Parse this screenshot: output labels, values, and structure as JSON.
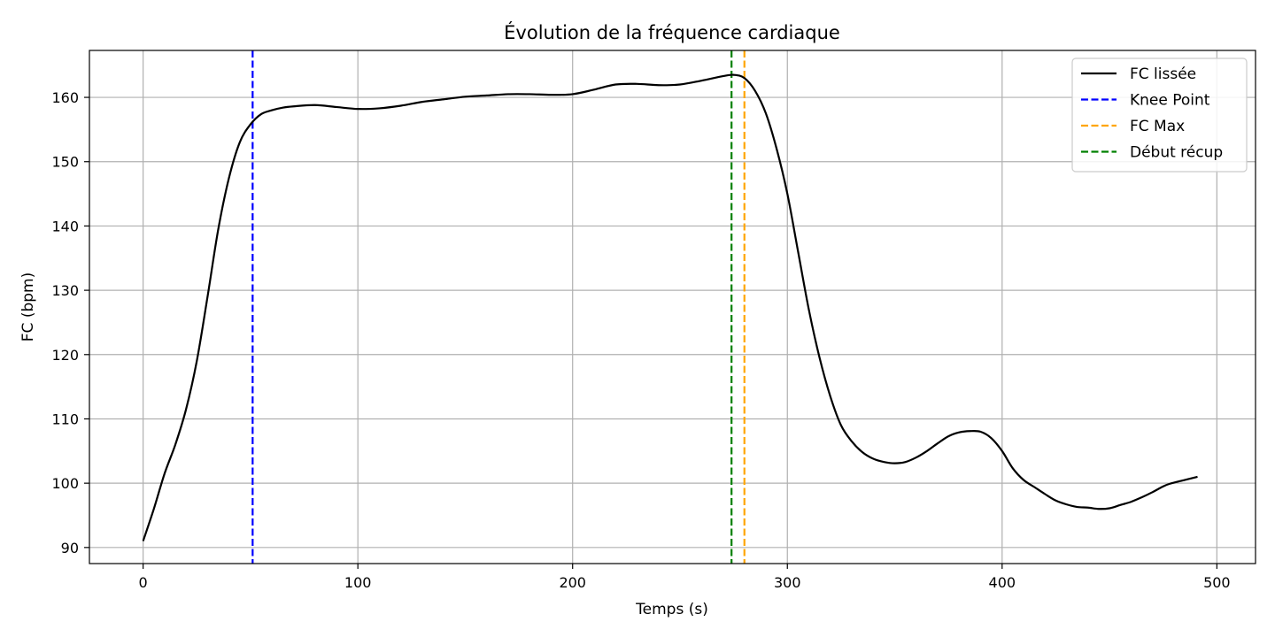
{
  "chart_data": {
    "type": "line",
    "title": "Évolution de la fréquence cardiaque",
    "xlabel": "Temps (s)",
    "ylabel": "FC (bpm)",
    "xlim": [
      -25,
      518
    ],
    "ylim": [
      87.5,
      167.3
    ],
    "xticks": [
      0,
      100,
      200,
      300,
      400,
      500
    ],
    "yticks": [
      90,
      100,
      110,
      120,
      130,
      140,
      150,
      160
    ],
    "grid": true,
    "legend_position": "top-right",
    "series": [
      {
        "name": "FC lissée",
        "color": "#000000",
        "style": "solid",
        "x": [
          0,
          5,
          10,
          15,
          20,
          25,
          30,
          35,
          40,
          45,
          50,
          55,
          60,
          65,
          70,
          80,
          90,
          100,
          110,
          120,
          130,
          140,
          150,
          160,
          170,
          180,
          190,
          200,
          210,
          220,
          230,
          240,
          250,
          260,
          270,
          275,
          280,
          285,
          290,
          295,
          300,
          305,
          310,
          315,
          320,
          325,
          330,
          335,
          340,
          345,
          350,
          355,
          360,
          365,
          370,
          375,
          380,
          385,
          390,
          395,
          400,
          405,
          410,
          415,
          420,
          425,
          430,
          435,
          440,
          445,
          450,
          455,
          460,
          465,
          470,
          475,
          478,
          485,
          491
        ],
        "y": [
          91,
          96,
          101.5,
          106,
          111.5,
          119,
          129,
          139.5,
          147.5,
          153,
          155.8,
          157.4,
          158,
          158.4,
          158.6,
          158.8,
          158.5,
          158.2,
          158.3,
          158.7,
          159.3,
          159.7,
          160.1,
          160.3,
          160.5,
          160.5,
          160.4,
          160.5,
          161.2,
          162,
          162.1,
          161.9,
          162,
          162.6,
          163.3,
          163.5,
          163,
          161,
          157.5,
          152,
          145,
          136,
          127,
          119.5,
          113.5,
          109,
          106.5,
          104.8,
          103.8,
          103.3,
          103.1,
          103.3,
          104,
          105,
          106.2,
          107.3,
          107.9,
          108.1,
          108,
          107,
          105,
          102.3,
          100.5,
          99.4,
          98.3,
          97.3,
          96.7,
          96.3,
          96.2,
          96,
          96.1,
          96.6,
          97.1,
          97.8,
          98.6,
          99.5,
          99.9,
          100.5,
          101
        ]
      }
    ],
    "vertical_lines": [
      {
        "name": "Knee Point",
        "x": 51,
        "color": "#0000ff",
        "style": "dashed"
      },
      {
        "name": "FC Max",
        "x": 280,
        "color": "#ffa500",
        "style": "dashed"
      },
      {
        "name": "Début récup",
        "x": 274,
        "color": "#008000",
        "style": "dashed"
      }
    ],
    "legend_entries": [
      {
        "label": "FC lissée",
        "color": "#000000",
        "style": "solid"
      },
      {
        "label": "Knee Point",
        "color": "#0000ff",
        "style": "dashed"
      },
      {
        "label": "FC Max",
        "color": "#ffa500",
        "style": "dashed"
      },
      {
        "label": "Début récup",
        "color": "#008000",
        "style": "dashed"
      }
    ]
  }
}
